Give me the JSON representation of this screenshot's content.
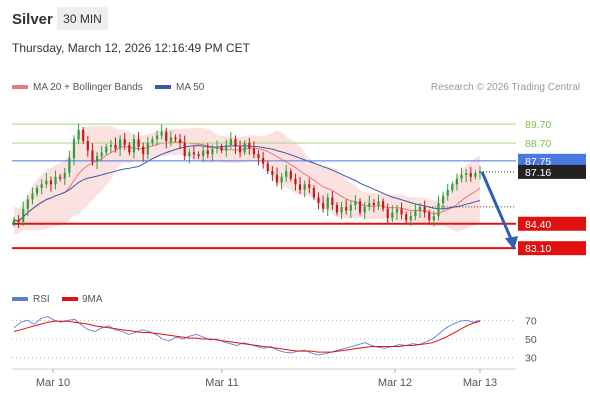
{
  "header": {
    "instrument": "Silver",
    "timeframe": "30 MIN",
    "timestamp": "Thursday, March 12, 2026 12:16:49 PM CET"
  },
  "legend": {
    "ma20_label": "MA 20 + Bollinger Bands",
    "ma50_label": "MA 50",
    "credit": "Research © 2026 Trading Central",
    "rsi_label": "RSI",
    "rsi_ma_label": "9MA"
  },
  "colors": {
    "up_candle": "#2e9e3e",
    "down_candle": "#c21a1a",
    "ma20": "#e87a7a",
    "ma50": "#3c5aa8",
    "bollinger_fill": "#fbdada",
    "resistance_line": "#a8d48a",
    "pivot_line": "#4a78e0",
    "support_line": "#e01010",
    "current_price_tag": "#222222",
    "forecast_arrow": "#2e5fb0",
    "rsi": "#5b7fd6",
    "rsi_ma": "#e01010"
  },
  "chart_data": {
    "type": "candlestick",
    "title": "Silver",
    "timeframe": "30 MIN",
    "x_axis": {
      "tick_labels": [
        "Mar 10",
        "Mar 11",
        "Mar 12",
        "Mar 13"
      ]
    },
    "y_range": [
      81.3,
      91.2
    ],
    "levels": [
      {
        "value": 89.7,
        "label": "89.70",
        "kind": "resistance"
      },
      {
        "value": 88.7,
        "label": "88.70",
        "kind": "resistance"
      },
      {
        "value": 87.75,
        "label": "87.75",
        "kind": "pivot"
      },
      {
        "value": 87.16,
        "label": "87.16",
        "kind": "last_price"
      },
      {
        "value": 84.4,
        "label": "84.40",
        "kind": "support"
      },
      {
        "value": 83.1,
        "label": "83.10",
        "kind": "support"
      }
    ],
    "forecast": {
      "from": 87.16,
      "to": 83.1,
      "direction": "down"
    },
    "close_series": [
      84.6,
      84.5,
      85.2,
      85.7,
      86.0,
      86.3,
      86.5,
      86.7,
      86.5,
      86.9,
      86.8,
      87.1,
      87.9,
      88.9,
      89.4,
      88.8,
      88.3,
      87.7,
      88.0,
      88.2,
      88.5,
      88.6,
      88.4,
      88.9,
      88.6,
      88.2,
      88.9,
      88.5,
      88.1,
      88.7,
      88.9,
      89.1,
      89.3,
      88.8,
      89.0,
      88.9,
      88.7,
      88.0,
      88.2,
      88.1,
      88.0,
      88.3,
      88.1,
      88.4,
      88.5,
      88.3,
      88.6,
      88.9,
      88.5,
      88.2,
      88.7,
      88.4,
      88.1,
      87.9,
      87.6,
      87.2,
      87.0,
      86.6,
      86.9,
      87.2,
      86.8,
      86.5,
      86.2,
      86.5,
      86.3,
      85.8,
      85.5,
      85.2,
      85.8,
      85.4,
      85.0,
      85.3,
      85.1,
      85.4,
      85.6,
      85.0,
      85.3,
      85.5,
      85.4,
      85.6,
      85.2,
      84.7,
      85.0,
      85.2,
      84.9,
      84.6,
      84.8,
      85.1,
      85.3,
      85.0,
      84.6,
      84.8,
      85.5,
      85.9,
      86.2,
      86.5,
      86.8,
      87.0,
      87.1,
      86.9,
      87.1,
      87.2
    ],
    "rsi": {
      "ticks": [
        70,
        50,
        30
      ],
      "values": [
        62,
        68,
        70,
        66,
        72,
        74,
        70,
        68,
        70,
        71,
        65,
        60,
        58,
        62,
        64,
        60,
        58,
        55,
        57,
        60,
        58,
        55,
        50,
        48,
        52,
        50,
        53,
        55,
        52,
        49,
        50,
        47,
        45,
        43,
        46,
        44,
        42,
        40,
        42,
        38,
        36,
        35,
        37,
        38,
        35,
        33,
        34,
        36,
        38,
        40,
        42,
        44,
        46,
        43,
        41,
        40,
        42,
        44,
        43,
        45,
        44,
        47,
        50,
        56,
        62,
        66,
        69,
        70,
        68,
        70
      ],
      "ma9": [
        58,
        60,
        62,
        64,
        66,
        68,
        69,
        69,
        69,
        68,
        67,
        66,
        64,
        63,
        62,
        61,
        60,
        59,
        58,
        57,
        57,
        56,
        55,
        54,
        53,
        52,
        51,
        51,
        50,
        50,
        49,
        48,
        47,
        46,
        45,
        44,
        43,
        42,
        41,
        40,
        39,
        38,
        37,
        37,
        37,
        36,
        36,
        36,
        37,
        38,
        39,
        40,
        41,
        42,
        42,
        42,
        42,
        42,
        43,
        43,
        44,
        45,
        46,
        49,
        52,
        56,
        60,
        64,
        67,
        69
      ]
    }
  }
}
